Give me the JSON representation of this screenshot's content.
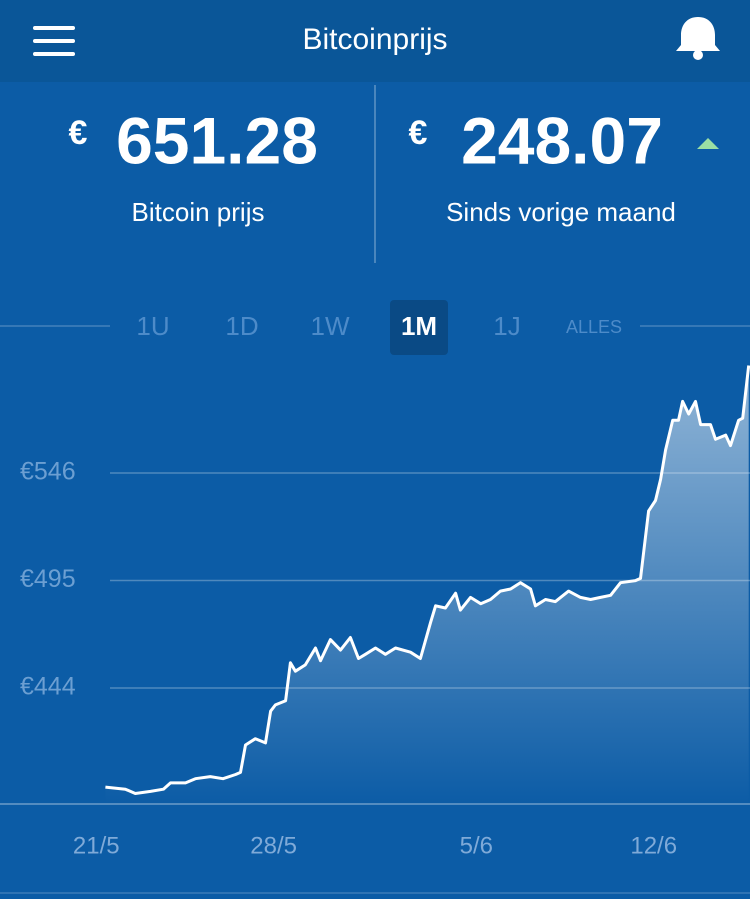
{
  "app": {
    "title": "Bitcoinprijs"
  },
  "stats": [
    {
      "currency": "€",
      "value": 651.28,
      "label": "Bitcoin prijs"
    },
    {
      "currency": "€",
      "value": 248.07,
      "label": "Sinds vorige maand"
    }
  ],
  "ranges": {
    "options": [
      "1U",
      "1D",
      "1W",
      "1M",
      "1J",
      "ALLES"
    ],
    "selected": 3
  },
  "chart_data": {
    "type": "line",
    "color": "#ffffff",
    "grid": true,
    "x": [
      0.36,
      1.15,
      1.54,
      2.14,
      2.65,
      2.93,
      3.52,
      3.91,
      4.5,
      5.0,
      5.5,
      5.69,
      5.89,
      6.28,
      6.68,
      6.88,
      7.07,
      7.47,
      7.66,
      7.86,
      8.25,
      8.65,
      8.85,
      9.24,
      9.64,
      10.03,
      10.35,
      10.62,
      11.02,
      11.41,
      11.81,
      12.4,
      12.79,
      13.19,
      13.39,
      13.78,
      14.18,
      14.37,
      14.77,
      15.17,
      15.56,
      15.95,
      16.35,
      16.74,
      17.14,
      17.33,
      17.73,
      18.12,
      18.64,
      19.11,
      19.51,
      19.9,
      20.3,
      20.69,
      21.28,
      21.48,
      21.8,
      22.07,
      22.27,
      22.47,
      22.75,
      22.98,
      23.14,
      23.38,
      23.65,
      23.85,
      24.24,
      24.44,
      24.84,
      25.03,
      25.35,
      25.51,
      25.75
    ],
    "values": [
      397,
      396,
      394,
      395,
      396,
      399,
      399,
      401,
      402,
      401,
      403,
      404,
      417,
      420,
      418,
      433,
      436,
      438,
      456,
      452,
      455,
      463,
      457,
      467,
      462,
      468,
      458,
      460,
      463,
      460,
      463,
      461,
      458,
      475,
      483,
      482,
      489,
      481,
      487,
      484,
      486,
      490,
      491,
      494,
      491,
      483,
      486,
      485,
      490,
      487,
      486,
      487,
      488,
      494,
      495,
      496,
      528,
      533,
      543,
      557,
      571,
      571,
      580,
      574,
      580,
      569,
      569,
      562,
      564,
      559,
      571,
      572,
      597
    ],
    "xlim": [
      -3.8,
      25.8
    ],
    "ylim": [
      389,
      602
    ],
    "xticks": [
      {
        "value": 0,
        "label": "21/5"
      },
      {
        "value": 7,
        "label": "28/5"
      },
      {
        "value": 15,
        "label": "5/6"
      },
      {
        "value": 22,
        "label": "12/6"
      }
    ],
    "yticks": [
      {
        "value": 444,
        "label": "€444"
      },
      {
        "value": 495,
        "label": "€495"
      },
      {
        "value": 546,
        "label": "€546"
      }
    ]
  }
}
